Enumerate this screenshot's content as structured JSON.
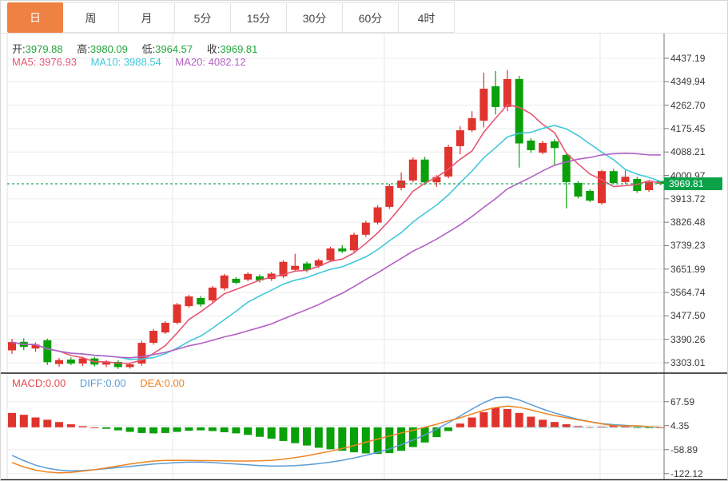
{
  "tabs": {
    "items": [
      {
        "label": "日",
        "active": true
      },
      {
        "label": "周",
        "active": false
      },
      {
        "label": "月",
        "active": false
      },
      {
        "label": "5分",
        "active": false
      },
      {
        "label": "15分",
        "active": false
      },
      {
        "label": "30分",
        "active": false
      },
      {
        "label": "60分",
        "active": false
      },
      {
        "label": "4时",
        "active": false
      }
    ]
  },
  "ohlc": {
    "open_label": "开:",
    "open": "3979.88",
    "high_label": "高:",
    "high": "3980.09",
    "low_label": "低:",
    "low": "3964.57",
    "close_label": "收:",
    "close": "3969.81"
  },
  "ma": {
    "ma5_label": "MA5:",
    "ma5": "3976.93",
    "ma10_label": "MA10:",
    "ma10": "3988.54",
    "ma20_label": "MA20:",
    "ma20": "4082.12"
  },
  "price_tag": "3969.81",
  "macd_header": {
    "macd_label": "MACD:",
    "macd_value": "0.00",
    "diff_label": "DIFF:",
    "diff_value": "0.00",
    "dea_label": "DEA:",
    "dea_value": "0.00"
  },
  "colors": {
    "up": "#e0332e",
    "down": "#0aa00a",
    "active_tab": "#ef8142",
    "value_green": "#21a53b",
    "ma5": "#e85571",
    "ma10": "#41c7da",
    "ma20": "#b261c4",
    "diff": "#5b9bd5",
    "dea": "#ee8422",
    "macd_label": "#e04a50",
    "price_line": "#25a35a",
    "price_tag_bg": "#0ca24a",
    "grid": "#ececec",
    "axis_line": "#777777"
  },
  "chart_data": {
    "type": "candlestick",
    "title": "",
    "price_axis_ticks": [
      "4437.19",
      "4349.94",
      "4262.70",
      "4175.45",
      "4088.21",
      "4000.97",
      "3913.72",
      "3826.48",
      "3739.23",
      "3651.99",
      "3564.74",
      "3477.50",
      "3390.26",
      "3303.01"
    ],
    "price_axis_range": [
      3303.01,
      4437.19
    ],
    "current_price": 3969.81,
    "candles_ohlc_order": "open,high,low,close",
    "candles": [
      [
        3349,
        3392,
        3336,
        3380
      ],
      [
        3381,
        3394,
        3350,
        3362
      ],
      [
        3356,
        3379,
        3344,
        3371
      ],
      [
        3387,
        3393,
        3295,
        3305
      ],
      [
        3298,
        3321,
        3288,
        3313
      ],
      [
        3315,
        3323,
        3294,
        3300
      ],
      [
        3300,
        3326,
        3291,
        3319
      ],
      [
        3319,
        3325,
        3289,
        3296
      ],
      [
        3296,
        3313,
        3287,
        3305
      ],
      [
        3306,
        3313,
        3280,
        3287
      ],
      [
        3287,
        3303,
        3281,
        3297
      ],
      [
        3300,
        3385,
        3292,
        3377
      ],
      [
        3377,
        3428,
        3370,
        3422
      ],
      [
        3416,
        3458,
        3410,
        3452
      ],
      [
        3452,
        3526,
        3446,
        3520
      ],
      [
        3514,
        3556,
        3508,
        3550
      ],
      [
        3544,
        3552,
        3512,
        3520
      ],
      [
        3535,
        3589,
        3528,
        3583
      ],
      [
        3580,
        3634,
        3572,
        3628
      ],
      [
        3616,
        3622,
        3596,
        3601
      ],
      [
        3613,
        3640,
        3606,
        3634
      ],
      [
        3625,
        3632,
        3602,
        3610
      ],
      [
        3615,
        3641,
        3608,
        3635
      ],
      [
        3625,
        3685,
        3618,
        3679
      ],
      [
        3649,
        3709,
        3642,
        3664
      ],
      [
        3673,
        3680,
        3640,
        3649
      ],
      [
        3664,
        3691,
        3656,
        3685
      ],
      [
        3685,
        3735,
        3678,
        3729
      ],
      [
        3729,
        3741,
        3712,
        3718
      ],
      [
        3722,
        3788,
        3715,
        3780
      ],
      [
        3780,
        3832,
        3772,
        3825
      ],
      [
        3825,
        3890,
        3818,
        3882
      ],
      [
        3884,
        3970,
        3876,
        3961
      ],
      [
        3955,
        4012,
        3945,
        3982
      ],
      [
        3982,
        4068,
        3975,
        4060
      ],
      [
        4060,
        4070,
        3965,
        3975
      ],
      [
        3975,
        4002,
        3958,
        3995
      ],
      [
        3997,
        4115,
        3990,
        4107
      ],
      [
        4110,
        4184,
        4080,
        4169
      ],
      [
        4169,
        4240,
        4162,
        4214
      ],
      [
        4205,
        4384,
        4180,
        4324
      ],
      [
        4333,
        4390,
        4228,
        4256
      ],
      [
        4256,
        4394,
        4240,
        4360
      ],
      [
        4360,
        4372,
        4030,
        4120
      ],
      [
        4131,
        4140,
        4085,
        4095
      ],
      [
        4086,
        4130,
        4080,
        4122
      ],
      [
        4128,
        4136,
        4041,
        4103
      ],
      [
        4077,
        4082,
        3878,
        3976
      ],
      [
        3973,
        3980,
        3915,
        3922
      ],
      [
        3943,
        3950,
        3902,
        3907
      ],
      [
        3898,
        4022,
        3892,
        4017
      ],
      [
        4017,
        4026,
        3968,
        3973
      ],
      [
        3976,
        4020,
        3970,
        3996
      ],
      [
        3988,
        3996,
        3936,
        3943
      ],
      [
        3946,
        3982,
        3940,
        3976
      ],
      [
        3979.88,
        3980.09,
        3964.57,
        3969.81
      ]
    ],
    "ma_periods": [
      5,
      10,
      20
    ],
    "macd": {
      "axis_ticks": [
        "67.59",
        "4.35",
        "-58.89",
        "-122.12"
      ],
      "axis_values": [
        67.59,
        4.35,
        -58.89,
        -122.12
      ],
      "hist": [
        38,
        33,
        26,
        20,
        14,
        8,
        3,
        0,
        -4,
        -8,
        -12,
        -15,
        -16,
        -15,
        -12,
        -9,
        -8,
        -10,
        -13,
        -16,
        -20,
        -25,
        -30,
        -36,
        -42,
        -48,
        -54,
        -58,
        -62,
        -66,
        -69,
        -70,
        -68,
        -62,
        -52,
        -40,
        -26,
        -10,
        10,
        26,
        40,
        52,
        48,
        38,
        28,
        20,
        14,
        8,
        3,
        1,
        2,
        5,
        3,
        -2,
        -1,
        0
      ],
      "diff": [
        -74,
        -88,
        -100,
        -108,
        -113,
        -115,
        -114,
        -112,
        -109,
        -106,
        -103,
        -100,
        -97,
        -95,
        -93,
        -92,
        -92,
        -93,
        -95,
        -97,
        -99,
        -101,
        -102,
        -102,
        -101,
        -99,
        -96,
        -92,
        -87,
        -81,
        -74,
        -66,
        -57,
        -46,
        -34,
        -20,
        -5,
        12,
        30,
        48,
        65,
        78,
        80,
        72,
        60,
        48,
        38,
        29,
        21,
        15,
        10,
        7,
        5,
        3,
        1,
        0
      ]
    }
  }
}
